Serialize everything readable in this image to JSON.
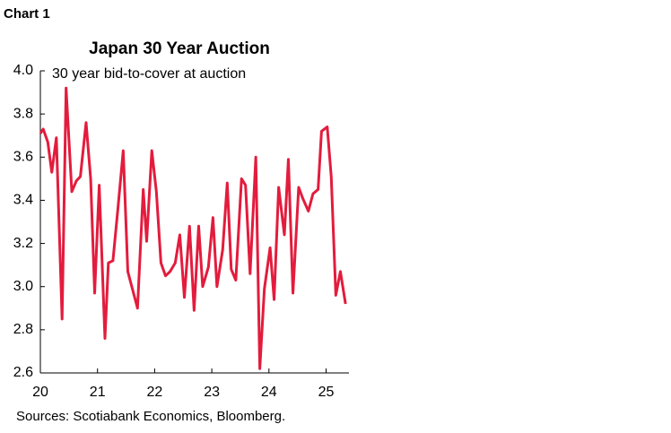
{
  "chart_data": {
    "type": "line",
    "label": "Chart 1",
    "title": "Japan 30 Year Auction",
    "annotation": "30 year bid-to-cover at auction",
    "source": "Sources: Scotiabank Economics, Bloomberg.",
    "x": [
      20.0,
      20.05,
      20.13,
      20.2,
      20.28,
      20.38,
      20.45,
      20.55,
      20.63,
      20.7,
      20.8,
      20.88,
      20.95,
      21.03,
      21.13,
      21.19,
      21.27,
      21.36,
      21.45,
      21.53,
      21.61,
      21.7,
      21.8,
      21.86,
      21.95,
      22.03,
      22.11,
      22.19,
      22.27,
      22.36,
      22.44,
      22.52,
      22.61,
      22.69,
      22.77,
      22.84,
      22.94,
      23.02,
      23.09,
      23.19,
      23.27,
      23.34,
      23.42,
      23.52,
      23.59,
      23.67,
      23.77,
      23.84,
      23.92,
      24.02,
      24.09,
      24.17,
      24.27,
      24.34,
      24.42,
      24.52,
      24.59,
      24.69,
      24.77,
      24.86,
      24.92,
      25.02,
      25.09,
      25.17,
      25.25,
      25.34
    ],
    "series": [
      {
        "name": "30 year bid-to-cover",
        "color": "#e31c3d",
        "values": [
          3.71,
          3.73,
          3.67,
          3.53,
          3.69,
          2.85,
          3.92,
          3.44,
          3.49,
          3.51,
          3.76,
          3.5,
          2.97,
          3.47,
          2.76,
          3.11,
          3.12,
          3.37,
          3.63,
          3.07,
          2.99,
          2.9,
          3.45,
          3.21,
          3.63,
          3.44,
          3.11,
          3.05,
          3.07,
          3.11,
          3.24,
          2.95,
          3.28,
          2.89,
          3.28,
          3.0,
          3.09,
          3.32,
          3.0,
          3.17,
          3.48,
          3.08,
          3.03,
          3.5,
          3.47,
          3.06,
          3.6,
          2.62,
          2.99,
          3.18,
          2.94,
          3.46,
          3.24,
          3.59,
          2.97,
          3.46,
          3.41,
          3.35,
          3.43,
          3.45,
          3.72,
          3.74,
          3.51,
          2.96,
          3.07,
          2.92
        ]
      }
    ],
    "xlim": [
      20,
      25.4
    ],
    "xticks": [
      20,
      21,
      22,
      23,
      24,
      25
    ],
    "ylim": [
      2.6,
      4.0
    ],
    "yticks": [
      2.6,
      2.8,
      {
        "value": 3,
        "label": "3.0"
      },
      3.2,
      3.4,
      3.6,
      3.8,
      {
        "value": 4,
        "label": "4.0"
      }
    ],
    "grid": false
  }
}
